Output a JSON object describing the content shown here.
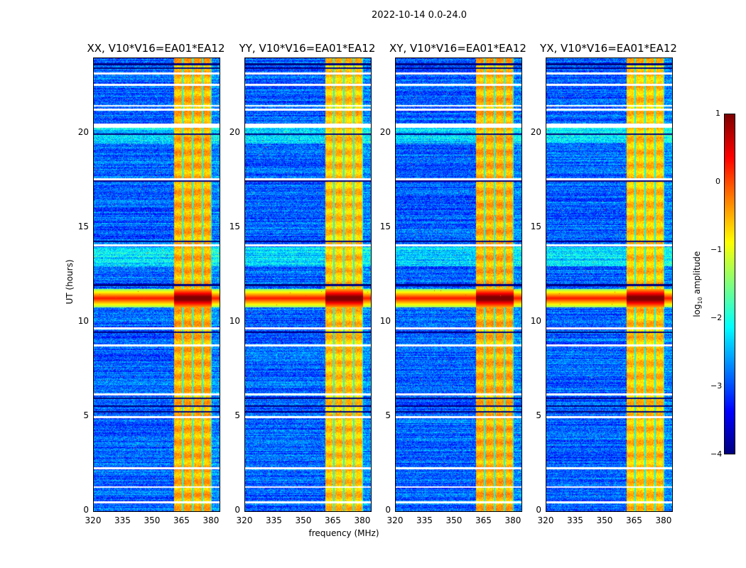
{
  "suptitle": "2022-10-14 0.0-24.0",
  "chart_data": {
    "type": "heatmap",
    "xlabel": "frequency (MHz)",
    "ylabel": "UT (hours)",
    "xlim": [
      320,
      384
    ],
    "ylim": [
      0,
      24
    ],
    "xticks": [
      "320",
      "335",
      "350",
      "365",
      "380"
    ],
    "xtick_values": [
      320,
      335,
      350,
      365,
      380
    ],
    "yticks": [
      "0",
      "5",
      "10",
      "15",
      "20"
    ],
    "ytick_values": [
      0,
      5,
      10,
      15,
      20
    ],
    "panels": [
      {
        "title": "XX, V10*V16=EA01*EA12"
      },
      {
        "title": "YY, V10*V16=EA01*EA12"
      },
      {
        "title": "XY, V10*V16=EA01*EA12"
      },
      {
        "title": "YX, V10*V16=EA01*EA12"
      }
    ],
    "colormap": "jet",
    "colorbar": {
      "label_prefix": "log",
      "label_sub": "10",
      "label_suffix": " amplitude",
      "range": [
        -4,
        1
      ],
      "ticks": [
        "1",
        "0",
        "−1",
        "−2",
        "−3",
        "−4"
      ],
      "tick_values": [
        1,
        0,
        -1,
        -2,
        -3,
        -4
      ]
    },
    "features": {
      "background_level": -2.9,
      "bright_band_mhz": [
        360.5,
        380
      ],
      "bright_band_level": -0.6,
      "channel_gaps_mhz": [
        365,
        370,
        375,
        380
      ],
      "rfi_hours": [
        10.8,
        11.8
      ],
      "flagged_hours": [
        23.2,
        22.6,
        21.5,
        21.3,
        20.4,
        20.5,
        17.6,
        14.1,
        9.7,
        8.8,
        6.2,
        5.0,
        2.3,
        1.3,
        0.5
      ],
      "dropout_hours": [
        23.7,
        23.5,
        20.0,
        17.5,
        14.3,
        12.0,
        9.5,
        6.0,
        5.6,
        5.3
      ]
    }
  }
}
